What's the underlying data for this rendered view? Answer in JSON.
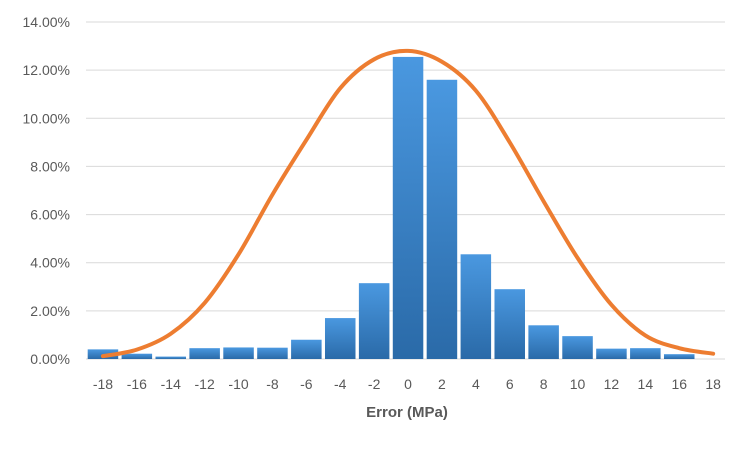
{
  "chart_data": {
    "type": "bar",
    "title": "",
    "xlabel": "Error (MPa)",
    "ylabel": "",
    "categories": [
      "-18",
      "-16",
      "-14",
      "-12",
      "-10",
      "-8",
      "-6",
      "-4",
      "-2",
      "0",
      "2",
      "4",
      "6",
      "8",
      "10",
      "12",
      "14",
      "16",
      "18"
    ],
    "series": [
      {
        "type": "bar",
        "values": [
          0.4,
          0.22,
          0.1,
          0.45,
          0.48,
          0.47,
          0.8,
          1.7,
          3.15,
          12.55,
          11.6,
          4.35,
          2.9,
          1.4,
          0.95,
          0.43,
          0.45,
          0.2,
          0.0
        ],
        "color": "#2e75b6"
      },
      {
        "type": "line",
        "values": [
          0.12,
          0.39,
          1.05,
          2.33,
          4.35,
          6.83,
          9.1,
          11.25,
          12.45,
          12.8,
          12.35,
          11.15,
          9.0,
          6.55,
          4.2,
          2.25,
          0.98,
          0.45,
          0.22
        ],
        "color": "#ed7d31"
      }
    ],
    "ylim": [
      0,
      14
    ],
    "y_ticks": [
      "0.00%",
      "2.00%",
      "4.00%",
      "6.00%",
      "8.00%",
      "10.00%",
      "12.00%",
      "14.00%"
    ],
    "grid": true,
    "legend": "none"
  }
}
